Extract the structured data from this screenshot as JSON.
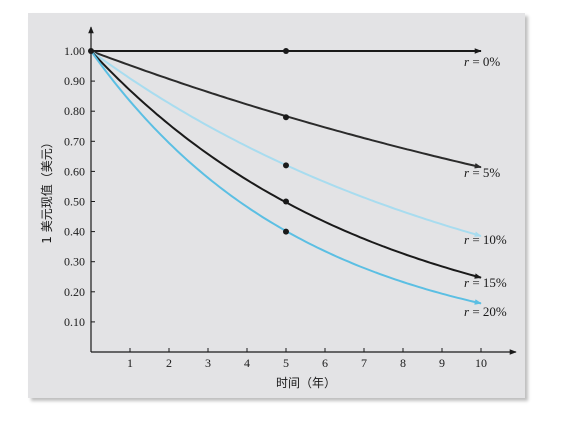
{
  "chart_data": {
    "type": "line",
    "xlabel": "时间（年）",
    "ylabel": "1 美元现值（美元）",
    "xlim": [
      0,
      10
    ],
    "ylim": [
      0,
      1.1
    ],
    "x_ticks": [
      "1",
      "2",
      "3",
      "4",
      "5",
      "6",
      "7",
      "8",
      "9",
      "10"
    ],
    "y_ticks": [
      "0.10",
      "0.20",
      "0.30",
      "0.40",
      "0.50",
      "0.60",
      "0.70",
      "0.80",
      "0.90",
      "1.00"
    ],
    "grid": false,
    "series": [
      {
        "name": "r = 0%",
        "rate": 0.0,
        "color": "#1a1a1a",
        "marker_x": 5,
        "marker_y": 1.0
      },
      {
        "name": "r = 5%",
        "rate": 0.05,
        "color": "#2b2b2b",
        "marker_x": 5,
        "marker_y": 0.78
      },
      {
        "name": "r = 10%",
        "rate": 0.1,
        "color": "#a8dcef",
        "marker_x": 5,
        "marker_y": 0.62
      },
      {
        "name": "r = 15%",
        "rate": 0.15,
        "color": "#1a1a1a",
        "marker_x": 5,
        "marker_y": 0.5
      },
      {
        "name": "r = 20%",
        "rate": 0.2,
        "color": "#5bbfe3",
        "marker_x": 5,
        "marker_y": 0.4
      }
    ]
  }
}
